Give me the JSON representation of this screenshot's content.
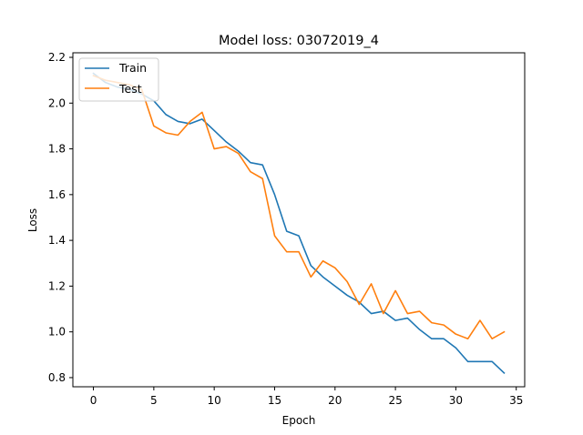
{
  "chart_data": {
    "type": "line",
    "title": "Model loss: 03072019_4",
    "xlabel": "Epoch",
    "ylabel": "Loss",
    "xlim": [
      -1.7,
      35.7
    ],
    "ylim": [
      0.76,
      2.22
    ],
    "xticks": [
      0,
      5,
      10,
      15,
      20,
      25,
      30,
      35
    ],
    "yticks": [
      0.8,
      1.0,
      1.2,
      1.4,
      1.6,
      1.8,
      2.0,
      2.2
    ],
    "ytick_labels": [
      "0.8",
      "1.0",
      "1.2",
      "1.4",
      "1.6",
      "1.8",
      "2.0",
      "2.2"
    ],
    "grid": false,
    "legend_position": "upper left",
    "x": [
      0,
      1,
      2,
      3,
      4,
      5,
      6,
      7,
      8,
      9,
      10,
      11,
      12,
      13,
      14,
      15,
      16,
      17,
      18,
      19,
      20,
      21,
      22,
      23,
      24,
      25,
      26,
      27,
      28,
      29,
      30,
      31,
      32,
      33,
      34
    ],
    "series": [
      {
        "name": "Train",
        "color": "#1f77b4",
        "values": [
          2.13,
          2.09,
          2.07,
          2.06,
          2.04,
          2.01,
          1.95,
          1.92,
          1.91,
          1.93,
          1.88,
          1.83,
          1.79,
          1.74,
          1.73,
          1.6,
          1.44,
          1.42,
          1.29,
          1.24,
          1.2,
          1.16,
          1.13,
          1.08,
          1.09,
          1.05,
          1.06,
          1.01,
          0.97,
          0.97,
          0.93,
          0.87,
          0.87,
          0.87,
          0.82
        ]
      },
      {
        "name": "Test",
        "color": "#ff7f0e",
        "values": [
          2.12,
          2.1,
          2.09,
          2.08,
          2.06,
          1.9,
          1.87,
          1.86,
          1.92,
          1.96,
          1.8,
          1.81,
          1.78,
          1.7,
          1.67,
          1.42,
          1.35,
          1.35,
          1.24,
          1.31,
          1.28,
          1.22,
          1.12,
          1.21,
          1.08,
          1.18,
          1.08,
          1.09,
          1.04,
          1.03,
          0.99,
          0.97,
          1.05,
          0.97,
          1.0
        ]
      }
    ]
  }
}
